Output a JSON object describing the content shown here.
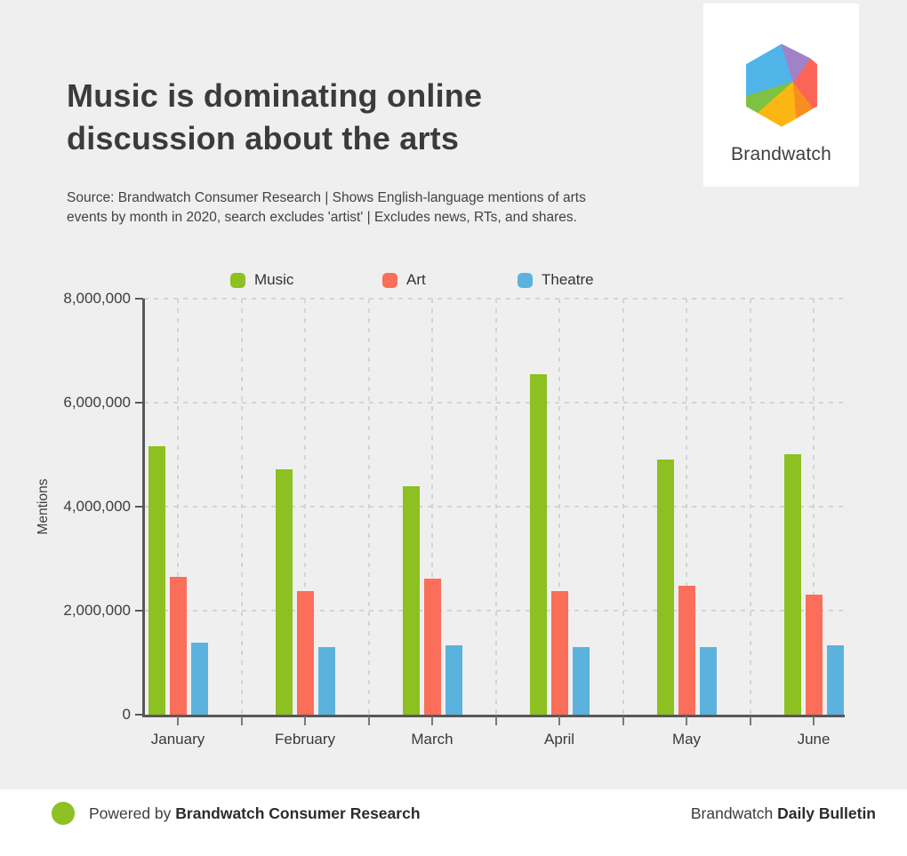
{
  "header": {
    "title_line1": "Music is dominating online",
    "title_line2": "discussion about the arts",
    "source_line1": "Source: Brandwatch Consumer Research | Shows English-language mentions of arts",
    "source_line2": "events by month in 2020, search excludes 'artist' | Excludes news, RTs, and shares."
  },
  "logo": {
    "brand": "Brandwatch",
    "hex_colors": {
      "blue": "#4fb4e8",
      "purple": "#a282c6",
      "coral": "#fa6557",
      "orange": "#f78e20",
      "yellow": "#fcb614",
      "green": "#7fc241"
    }
  },
  "chart_data": {
    "type": "bar",
    "title": "Music is dominating online discussion about the arts",
    "categories": [
      "January",
      "February",
      "March",
      "April",
      "May",
      "June"
    ],
    "series": [
      {
        "name": "Music",
        "color": "#8dc021",
        "values": [
          5170000,
          4720000,
          4400000,
          6550000,
          4900000,
          5010000
        ]
      },
      {
        "name": "Art",
        "color": "#fa6e5a",
        "values": [
          2650000,
          2370000,
          2620000,
          2370000,
          2480000,
          2310000
        ]
      },
      {
        "name": "Theatre",
        "color": "#5bb3dd",
        "values": [
          1380000,
          1300000,
          1330000,
          1300000,
          1300000,
          1340000
        ]
      }
    ],
    "xlabel": "",
    "ylabel": "Mentions",
    "ylim": [
      0,
      8000000
    ],
    "yticks": [
      {
        "value": 0,
        "label": "0"
      },
      {
        "value": 2000000,
        "label": "2,000,000"
      },
      {
        "value": 4000000,
        "label": "4,000,000"
      },
      {
        "value": 6000000,
        "label": "6,000,000"
      },
      {
        "value": 8000000,
        "label": "8,000,000"
      }
    ],
    "grid": true,
    "legend_position": "top"
  },
  "footer": {
    "powered_prefix": "Powered by ",
    "powered_brand": "Brandwatch Consumer Research",
    "right_prefix": "Brandwatch ",
    "right_bold": "Daily Bulletin",
    "dot_color": "#8dc021"
  }
}
